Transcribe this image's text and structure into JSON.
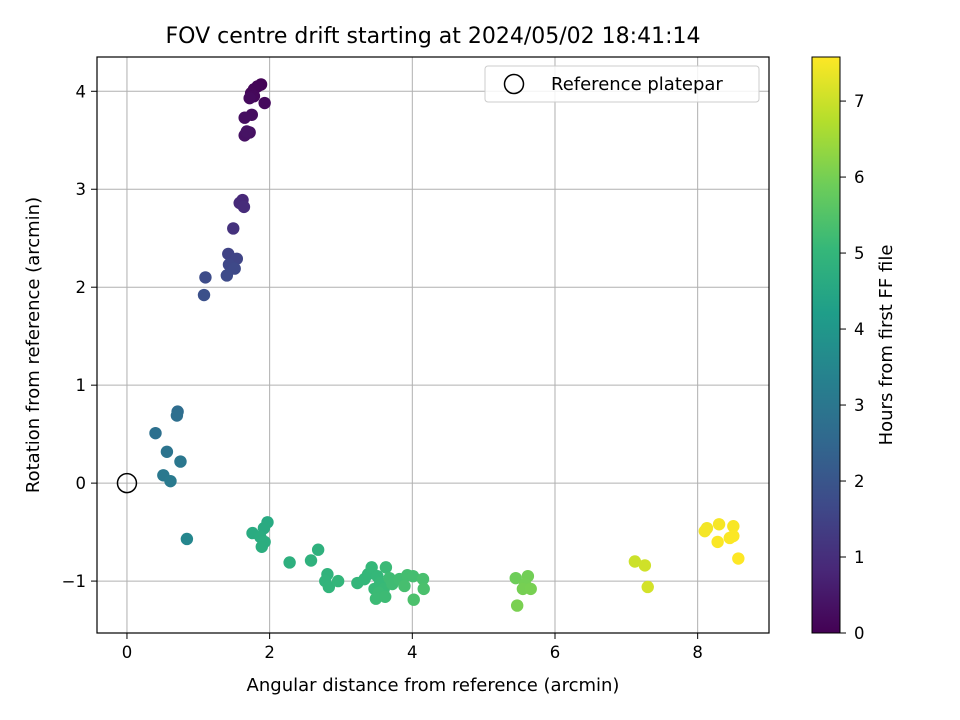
{
  "chart_data": {
    "type": "scatter",
    "title": "FOV centre drift starting at 2024/05/02 18:41:14",
    "xlabel": "Angular distance from reference (arcmin)",
    "ylabel": "Rotation from reference (arcmin)",
    "xlim": [
      -0.42,
      9.0
    ],
    "ylim": [
      -1.53,
      4.35
    ],
    "xticks": [
      0,
      2,
      4,
      6,
      8
    ],
    "yticks": [
      -1,
      0,
      1,
      2,
      3,
      4
    ],
    "xtick_labels": [
      "0",
      "2",
      "4",
      "6",
      "8"
    ],
    "ytick_labels": [
      "−1",
      "0",
      "1",
      "2",
      "3",
      "4"
    ],
    "grid": true,
    "colormap": "viridis",
    "colorbar": {
      "label": "Hours from first FF file",
      "range": [
        0,
        7.58
      ],
      "ticks": [
        0,
        1,
        2,
        3,
        4,
        5,
        6,
        7
      ],
      "tick_labels": [
        "0",
        "1",
        "2",
        "3",
        "4",
        "5",
        "6",
        "7"
      ]
    },
    "legend": {
      "position": "upper-right",
      "entries": [
        {
          "label": "Reference platepar",
          "marker": "open-circle"
        }
      ]
    },
    "reference_point": {
      "x": 0,
      "y": 0
    },
    "series": [
      {
        "points": [
          {
            "x": 1.88,
            "y": 4.07,
            "c": 0.05
          },
          {
            "x": 1.83,
            "y": 4.05,
            "c": 0.08
          },
          {
            "x": 1.78,
            "y": 4.02,
            "c": 0.1
          },
          {
            "x": 1.74,
            "y": 3.98,
            "c": 0.12
          },
          {
            "x": 1.78,
            "y": 3.95,
            "c": 0.15
          },
          {
            "x": 1.93,
            "y": 3.88,
            "c": 0.18
          },
          {
            "x": 1.72,
            "y": 3.93,
            "c": 0.2
          },
          {
            "x": 1.75,
            "y": 3.76,
            "c": 0.25
          },
          {
            "x": 1.65,
            "y": 3.73,
            "c": 0.28
          },
          {
            "x": 1.72,
            "y": 3.58,
            "c": 0.32
          },
          {
            "x": 1.65,
            "y": 3.55,
            "c": 0.35
          },
          {
            "x": 1.68,
            "y": 3.59,
            "c": 0.38
          },
          {
            "x": 1.62,
            "y": 2.89,
            "c": 0.85
          },
          {
            "x": 1.58,
            "y": 2.86,
            "c": 0.9
          },
          {
            "x": 1.64,
            "y": 2.82,
            "c": 0.95
          },
          {
            "x": 1.49,
            "y": 2.6,
            "c": 1.1
          },
          {
            "x": 1.42,
            "y": 2.34,
            "c": 1.5
          },
          {
            "x": 1.54,
            "y": 2.29,
            "c": 1.55
          },
          {
            "x": 1.43,
            "y": 2.23,
            "c": 1.6
          },
          {
            "x": 1.51,
            "y": 2.19,
            "c": 1.65
          },
          {
            "x": 1.4,
            "y": 2.12,
            "c": 1.7
          },
          {
            "x": 1.1,
            "y": 2.1,
            "c": 1.75
          },
          {
            "x": 1.08,
            "y": 1.92,
            "c": 1.85
          },
          {
            "x": 0.71,
            "y": 0.73,
            "c": 2.7
          },
          {
            "x": 0.7,
            "y": 0.69,
            "c": 2.75
          },
          {
            "x": 0.4,
            "y": 0.51,
            "c": 2.8
          },
          {
            "x": 0.56,
            "y": 0.32,
            "c": 2.9
          },
          {
            "x": 0.75,
            "y": 0.22,
            "c": 3.0
          },
          {
            "x": 0.51,
            "y": 0.08,
            "c": 3.05
          },
          {
            "x": 0.61,
            "y": 0.02,
            "c": 3.1
          },
          {
            "x": 0.84,
            "y": -0.57,
            "c": 3.5
          },
          {
            "x": 1.97,
            "y": -0.4,
            "c": 4.6
          },
          {
            "x": 1.92,
            "y": -0.46,
            "c": 4.62
          },
          {
            "x": 1.76,
            "y": -0.51,
            "c": 4.65
          },
          {
            "x": 1.87,
            "y": -0.55,
            "c": 4.68
          },
          {
            "x": 1.93,
            "y": -0.6,
            "c": 4.7
          },
          {
            "x": 1.89,
            "y": -0.65,
            "c": 4.72
          },
          {
            "x": 2.28,
            "y": -0.81,
            "c": 4.8
          },
          {
            "x": 2.68,
            "y": -0.68,
            "c": 4.82
          },
          {
            "x": 2.58,
            "y": -0.79,
            "c": 4.85
          },
          {
            "x": 2.81,
            "y": -0.93,
            "c": 4.9
          },
          {
            "x": 2.78,
            "y": -1.0,
            "c": 4.92
          },
          {
            "x": 2.83,
            "y": -1.06,
            "c": 4.95
          },
          {
            "x": 2.96,
            "y": -1.0,
            "c": 4.98
          },
          {
            "x": 3.23,
            "y": -1.02,
            "c": 5.0
          },
          {
            "x": 3.33,
            "y": -0.98,
            "c": 5.02
          },
          {
            "x": 3.38,
            "y": -0.93,
            "c": 5.03
          },
          {
            "x": 3.43,
            "y": -0.86,
            "c": 5.05
          },
          {
            "x": 3.51,
            "y": -0.95,
            "c": 5.06
          },
          {
            "x": 3.55,
            "y": -1.02,
            "c": 5.08
          },
          {
            "x": 3.47,
            "y": -1.08,
            "c": 5.1
          },
          {
            "x": 3.6,
            "y": -1.08,
            "c": 5.12
          },
          {
            "x": 3.63,
            "y": -0.86,
            "c": 5.14
          },
          {
            "x": 3.53,
            "y": -1.12,
            "c": 5.15
          },
          {
            "x": 3.49,
            "y": -1.18,
            "c": 5.16
          },
          {
            "x": 3.62,
            "y": -1.16,
            "c": 5.18
          },
          {
            "x": 3.68,
            "y": -0.97,
            "c": 5.2
          },
          {
            "x": 3.72,
            "y": -1.03,
            "c": 5.22
          },
          {
            "x": 3.82,
            "y": -0.98,
            "c": 5.25
          },
          {
            "x": 3.93,
            "y": -0.94,
            "c": 5.28
          },
          {
            "x": 4.01,
            "y": -0.95,
            "c": 5.3
          },
          {
            "x": 3.89,
            "y": -1.05,
            "c": 5.32
          },
          {
            "x": 4.15,
            "y": -0.98,
            "c": 5.35
          },
          {
            "x": 4.16,
            "y": -1.08,
            "c": 5.38
          },
          {
            "x": 4.02,
            "y": -1.19,
            "c": 5.4
          },
          {
            "x": 5.45,
            "y": -0.97,
            "c": 5.9
          },
          {
            "x": 5.62,
            "y": -0.95,
            "c": 5.95
          },
          {
            "x": 5.58,
            "y": -1.03,
            "c": 5.97
          },
          {
            "x": 5.55,
            "y": -1.08,
            "c": 6.0
          },
          {
            "x": 5.66,
            "y": -1.08,
            "c": 6.02
          },
          {
            "x": 5.47,
            "y": -1.25,
            "c": 6.05
          },
          {
            "x": 7.12,
            "y": -0.8,
            "c": 7.0
          },
          {
            "x": 7.26,
            "y": -0.84,
            "c": 7.05
          },
          {
            "x": 7.3,
            "y": -1.06,
            "c": 7.1
          },
          {
            "x": 8.13,
            "y": -0.46,
            "c": 7.45
          },
          {
            "x": 8.1,
            "y": -0.49,
            "c": 7.48
          },
          {
            "x": 8.3,
            "y": -0.42,
            "c": 7.5
          },
          {
            "x": 8.5,
            "y": -0.44,
            "c": 7.52
          },
          {
            "x": 8.28,
            "y": -0.6,
            "c": 7.54
          },
          {
            "x": 8.45,
            "y": -0.56,
            "c": 7.55
          },
          {
            "x": 8.5,
            "y": -0.54,
            "c": 7.56
          },
          {
            "x": 8.57,
            "y": -0.77,
            "c": 7.58
          }
        ]
      }
    ]
  }
}
